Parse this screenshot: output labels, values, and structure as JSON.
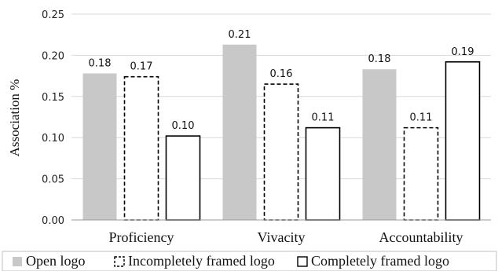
{
  "chart_data": {
    "type": "bar",
    "categories": [
      "Proficiency",
      "Vivacity",
      "Accountability"
    ],
    "ylabel": "Association %",
    "ylim": [
      0,
      0.25
    ],
    "yticks": [
      "0.00",
      "0.05",
      "0.10",
      "0.15",
      "0.20",
      "0.25"
    ],
    "grid": true,
    "legend_position": "bottom",
    "series": [
      {
        "name": "Open logo",
        "style": "gray-fill",
        "color": "#c8c8c8",
        "values": [
          0.178,
          0.213,
          0.183
        ],
        "labels": [
          "0.18",
          "0.21",
          "0.18"
        ]
      },
      {
        "name": "Incompletely framed logo",
        "style": "dashed-outline",
        "color": "#000000",
        "values": [
          0.174,
          0.165,
          0.112
        ],
        "labels": [
          "0.17",
          "0.16",
          "0.11"
        ]
      },
      {
        "name": "Completely framed logo",
        "style": "solid-outline",
        "color": "#000000",
        "values": [
          0.102,
          0.112,
          0.192
        ],
        "labels": [
          "0.10",
          "0.11",
          "0.19"
        ]
      }
    ]
  }
}
